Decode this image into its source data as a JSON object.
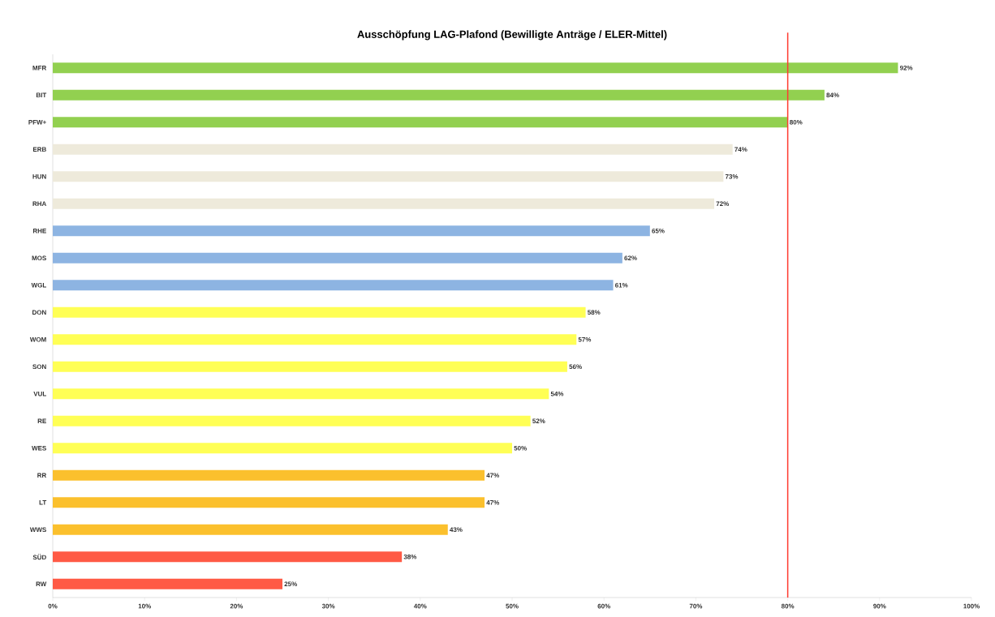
{
  "chart_data": {
    "type": "bar",
    "orientation": "horizontal",
    "title": "Ausschöpfung LAG-Plafond (Bewilligte Anträge / ELER-Mittel)",
    "categories": [
      "MFR",
      "BIT",
      "PFW+",
      "ERB",
      "HUN",
      "RHA",
      "RHE",
      "MOS",
      "WGL",
      "DON",
      "WOM",
      "SON",
      "VUL",
      "RE",
      "WES",
      "RR",
      "LT",
      "WWS",
      "SÜD",
      "RW"
    ],
    "values": [
      92,
      84,
      80,
      74,
      73,
      72,
      65,
      62,
      61,
      58,
      57,
      56,
      54,
      52,
      50,
      47,
      47,
      43,
      38,
      25
    ],
    "value_labels": [
      "92%",
      "84%",
      "80%",
      "74%",
      "73%",
      "72%",
      "65%",
      "62%",
      "61%",
      "58%",
      "57%",
      "56%",
      "54%",
      "52%",
      "50%",
      "47%",
      "47%",
      "43%",
      "38%",
      "25%"
    ],
    "colors": [
      "#92d050",
      "#92d050",
      "#92d050",
      "#eeeadb",
      "#eeeadb",
      "#eeeadb",
      "#8db4e2",
      "#8db4e2",
      "#8db4e2",
      "#ffff55",
      "#ffff55",
      "#ffff55",
      "#ffff55",
      "#ffff55",
      "#ffff55",
      "#fbc02d",
      "#fbc02d",
      "#fbc02d",
      "#ff5a45",
      "#ff5a45"
    ],
    "xlim": [
      0,
      100
    ],
    "xticks": [
      {
        "value": 0,
        "label": "0%"
      },
      {
        "value": 10,
        "label": "10%"
      },
      {
        "value": 20,
        "label": "20%"
      },
      {
        "value": 30,
        "label": "30%"
      },
      {
        "value": 40,
        "label": "40%"
      },
      {
        "value": 50,
        "label": "50%"
      },
      {
        "value": 60,
        "label": "60%"
      },
      {
        "value": 70,
        "label": "70%"
      },
      {
        "value": 80,
        "label": "80%"
      },
      {
        "value": 90,
        "label": "90%"
      },
      {
        "value": 100,
        "label": "100%"
      }
    ],
    "ref_lines": [
      {
        "axis": "x",
        "value": 80,
        "color": "#ff3b30"
      }
    ],
    "grid": false
  }
}
